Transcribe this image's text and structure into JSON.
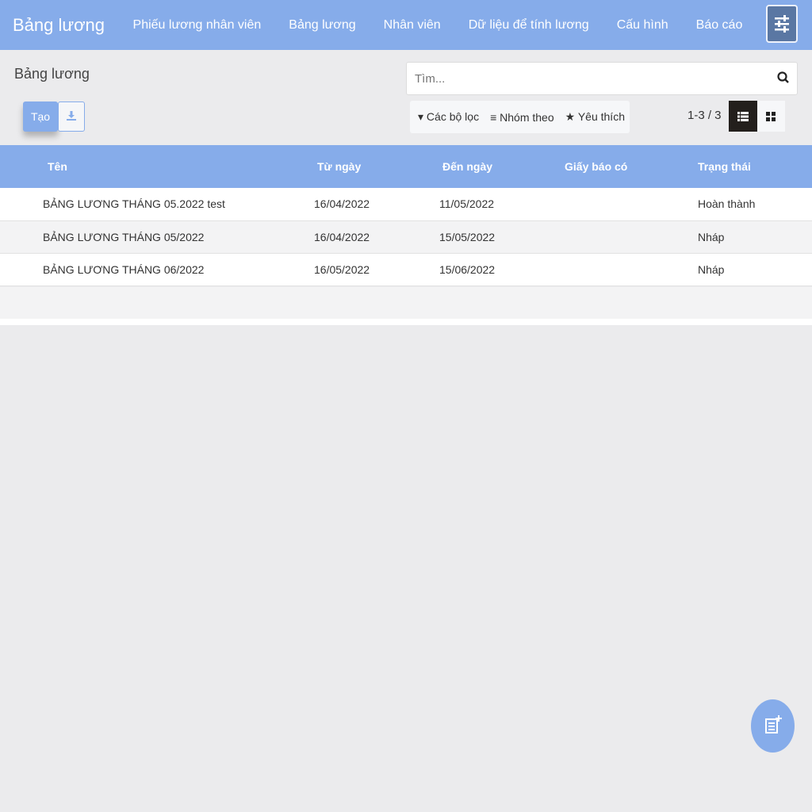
{
  "nav": {
    "brand": "Bảng lương",
    "items": [
      "Phiếu lương nhân viên",
      "Bảng lương",
      "Nhân viên",
      "Dữ liệu để tính lương",
      "Cấu hình",
      "Báo cáo"
    ]
  },
  "page": {
    "title": "Bảng lương",
    "create": "Tạo"
  },
  "search": {
    "placeholder": "Tìm..."
  },
  "filters": {
    "filter": "Các bộ lọc",
    "group": "Nhóm theo",
    "fav": "Yêu thích"
  },
  "pager": "1-3 / 3",
  "colors": {
    "accent": "#86acea"
  },
  "table": {
    "headers": [
      "Tên",
      "Từ ngày",
      "Đến ngày",
      "Giấy báo có",
      "Trạng thái"
    ],
    "rows": [
      [
        "BẢNG LƯƠNG THÁNG 05.2022 test",
        "16/04/2022",
        "11/05/2022",
        "",
        "Hoàn thành"
      ],
      [
        "BẢNG LƯƠNG THÁNG 05/2022",
        "16/04/2022",
        "15/05/2022",
        "",
        "Nháp"
      ],
      [
        "BẢNG LƯƠNG THÁNG 06/2022",
        "16/05/2022",
        "15/06/2022",
        "",
        "Nháp"
      ]
    ]
  }
}
